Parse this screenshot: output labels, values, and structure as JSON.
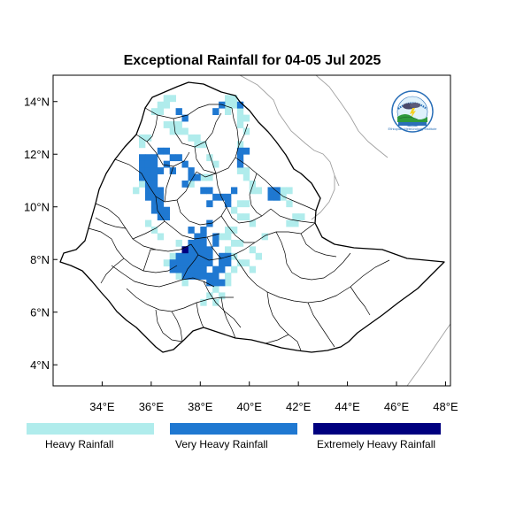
{
  "title": "Exceptional Rainfall for 04-05 Jul 2025",
  "map_extent": {
    "lon": [
      32.0,
      48.2
    ],
    "lat": [
      3.2,
      15.0
    ]
  },
  "x_ticks": [
    {
      "value": 34,
      "label": "34°E"
    },
    {
      "value": 36,
      "label": "36°E"
    },
    {
      "value": 38,
      "label": "38°E"
    },
    {
      "value": 40,
      "label": "40°E"
    },
    {
      "value": 42,
      "label": "42°E"
    },
    {
      "value": 44,
      "label": "44°E"
    },
    {
      "value": 46,
      "label": "46°E"
    },
    {
      "value": 48,
      "label": "48°E"
    }
  ],
  "y_ticks": [
    {
      "value": 4,
      "label": "4°N"
    },
    {
      "value": 6,
      "label": "6°N"
    },
    {
      "value": 8,
      "label": "8°N"
    },
    {
      "value": 10,
      "label": "10°N"
    },
    {
      "value": 12,
      "label": "12°N"
    },
    {
      "value": 14,
      "label": "14°N"
    }
  ],
  "legend": [
    {
      "label": "Heavy Rainfall",
      "color": "#b0ecec"
    },
    {
      "label": "Very Heavy Rainfall",
      "color": "#1f78d1"
    },
    {
      "label": "Extremely Heavy Rainfall",
      "color": "#00007f"
    }
  ],
  "colors": {
    "heavy": "#b0ecec",
    "very_heavy": "#1f78d1",
    "extreme": "#00007f",
    "boundary": "#000000",
    "neighbor_boundary": "#a0a0a0"
  },
  "logo": {
    "name": "ethiopian-meteorology-institute-logo",
    "text": "Ethiopian Meteorology Institute"
  },
  "chart_data": {
    "type": "heatmap",
    "categories": [
      "Heavy Rainfall",
      "Very Heavy Rainfall",
      "Extremely Heavy Rainfall"
    ],
    "cell_size_deg": 0.25,
    "heavy_cells": [
      [
        36.5,
        14.0
      ],
      [
        36.75,
        14.0
      ],
      [
        36.25,
        13.75
      ],
      [
        36.5,
        13.75
      ],
      [
        36.0,
        13.5
      ],
      [
        36.25,
        13.5
      ],
      [
        36.5,
        13.0
      ],
      [
        36.75,
        13.0
      ],
      [
        37.0,
        13.0
      ],
      [
        36.75,
        12.75
      ],
      [
        37.0,
        12.75
      ],
      [
        37.25,
        12.75
      ],
      [
        35.5,
        12.5
      ],
      [
        35.75,
        12.5
      ],
      [
        37.5,
        12.5
      ],
      [
        37.75,
        12.5
      ],
      [
        35.5,
        12.25
      ],
      [
        37.75,
        12.25
      ],
      [
        38.0,
        12.25
      ],
      [
        38.25,
        11.75
      ],
      [
        38.5,
        11.5
      ],
      [
        38.0,
        11.0
      ],
      [
        38.25,
        11.0
      ],
      [
        37.5,
        10.75
      ],
      [
        39.0,
        14.0
      ],
      [
        39.25,
        14.0
      ],
      [
        39.0,
        13.75
      ],
      [
        39.25,
        13.75
      ],
      [
        39.0,
        13.5
      ],
      [
        39.5,
        13.5
      ],
      [
        39.5,
        13.25
      ],
      [
        39.75,
        13.25
      ],
      [
        39.5,
        13.0
      ],
      [
        39.75,
        12.75
      ],
      [
        39.5,
        12.25
      ],
      [
        39.5,
        11.25
      ],
      [
        39.75,
        11.25
      ],
      [
        39.75,
        11.0
      ],
      [
        40.0,
        10.75
      ],
      [
        40.0,
        10.5
      ],
      [
        40.25,
        10.5
      ],
      [
        39.5,
        10.0
      ],
      [
        39.75,
        10.0
      ],
      [
        39.25,
        9.75
      ],
      [
        39.5,
        9.5
      ],
      [
        39.75,
        9.5
      ],
      [
        40.0,
        9.25
      ],
      [
        41.25,
        10.5
      ],
      [
        41.5,
        10.5
      ],
      [
        41.0,
        10.25
      ],
      [
        41.25,
        10.25
      ],
      [
        41.5,
        10.0
      ],
      [
        41.75,
        9.5
      ],
      [
        42.0,
        9.5
      ],
      [
        41.5,
        9.25
      ],
      [
        41.75,
        9.25
      ],
      [
        39.0,
        9.0
      ],
      [
        39.25,
        9.0
      ],
      [
        38.75,
        8.75
      ],
      [
        39.0,
        8.75
      ],
      [
        39.25,
        8.5
      ],
      [
        39.5,
        8.5
      ],
      [
        39.0,
        8.25
      ],
      [
        39.25,
        8.0
      ],
      [
        39.5,
        7.75
      ],
      [
        39.25,
        7.5
      ],
      [
        39.0,
        7.25
      ],
      [
        39.0,
        7.0
      ],
      [
        38.5,
        6.75
      ],
      [
        38.75,
        6.5
      ],
      [
        38.25,
        6.5
      ],
      [
        38.0,
        6.25
      ],
      [
        38.5,
        6.25
      ],
      [
        37.0,
        8.5
      ],
      [
        37.25,
        8.25
      ],
      [
        36.75,
        8.0
      ],
      [
        36.5,
        7.75
      ],
      [
        37.0,
        7.25
      ],
      [
        37.25,
        7.0
      ],
      [
        35.5,
        10.75
      ],
      [
        35.25,
        10.5
      ],
      [
        35.5,
        11.0
      ],
      [
        36.0,
        9.0
      ],
      [
        36.25,
        8.75
      ],
      [
        35.75,
        9.25
      ],
      [
        40.0,
        8.25
      ],
      [
        40.25,
        8.0
      ],
      [
        39.75,
        7.75
      ],
      [
        40.0,
        7.5
      ],
      [
        40.5,
        8.75
      ]
    ],
    "very_heavy_cells": [
      [
        37.0,
        13.5
      ],
      [
        37.25,
        13.25
      ],
      [
        38.5,
        13.5
      ],
      [
        38.75,
        13.75
      ],
      [
        35.5,
        11.75
      ],
      [
        35.75,
        11.75
      ],
      [
        35.5,
        11.5
      ],
      [
        35.75,
        11.5
      ],
      [
        36.0,
        11.5
      ],
      [
        35.5,
        11.25
      ],
      [
        35.75,
        11.25
      ],
      [
        36.0,
        11.25
      ],
      [
        36.25,
        11.25
      ],
      [
        35.5,
        11.0
      ],
      [
        35.75,
        11.0
      ],
      [
        36.0,
        11.0
      ],
      [
        35.75,
        10.75
      ],
      [
        36.0,
        10.75
      ],
      [
        35.75,
        10.5
      ],
      [
        36.0,
        10.5
      ],
      [
        36.25,
        10.5
      ],
      [
        35.75,
        10.25
      ],
      [
        36.0,
        10.25
      ],
      [
        36.25,
        10.25
      ],
      [
        36.0,
        10.0
      ],
      [
        36.25,
        10.0
      ],
      [
        36.0,
        9.75
      ],
      [
        36.25,
        9.75
      ],
      [
        36.5,
        9.75
      ],
      [
        36.25,
        9.5
      ],
      [
        36.5,
        9.5
      ],
      [
        36.25,
        12.0
      ],
      [
        36.5,
        12.0
      ],
      [
        36.0,
        11.75
      ],
      [
        36.75,
        11.75
      ],
      [
        36.5,
        11.5
      ],
      [
        36.75,
        11.25
      ],
      [
        37.0,
        11.75
      ],
      [
        37.25,
        11.5
      ],
      [
        37.5,
        11.25
      ],
      [
        37.5,
        11.0
      ],
      [
        37.75,
        11.0
      ],
      [
        37.25,
        10.75
      ],
      [
        38.0,
        10.5
      ],
      [
        38.25,
        10.5
      ],
      [
        38.5,
        10.25
      ],
      [
        38.25,
        10.0
      ],
      [
        38.75,
        10.25
      ],
      [
        39.0,
        10.0
      ],
      [
        39.0,
        10.25
      ],
      [
        39.25,
        10.5
      ],
      [
        39.5,
        11.5
      ],
      [
        39.5,
        11.75
      ],
      [
        39.75,
        12.0
      ],
      [
        39.5,
        12.0
      ],
      [
        39.5,
        13.75
      ],
      [
        40.75,
        10.25
      ],
      [
        41.0,
        10.25
      ],
      [
        41.0,
        10.5
      ],
      [
        40.75,
        10.5
      ],
      [
        37.5,
        9.0
      ],
      [
        37.75,
        8.75
      ],
      [
        38.0,
        8.75
      ],
      [
        37.5,
        8.5
      ],
      [
        37.75,
        8.5
      ],
      [
        38.0,
        8.5
      ],
      [
        37.25,
        8.25
      ],
      [
        37.5,
        8.25
      ],
      [
        37.75,
        8.25
      ],
      [
        38.0,
        8.25
      ],
      [
        38.25,
        8.25
      ],
      [
        37.0,
        8.0
      ],
      [
        37.25,
        8.0
      ],
      [
        37.5,
        8.0
      ],
      [
        37.75,
        8.0
      ],
      [
        38.0,
        8.0
      ],
      [
        38.25,
        8.0
      ],
      [
        36.75,
        7.75
      ],
      [
        37.0,
        7.75
      ],
      [
        37.25,
        7.75
      ],
      [
        37.5,
        7.75
      ],
      [
        37.75,
        7.75
      ],
      [
        38.0,
        7.75
      ],
      [
        38.25,
        7.75
      ],
      [
        36.75,
        7.5
      ],
      [
        37.0,
        7.5
      ],
      [
        37.25,
        7.5
      ],
      [
        37.5,
        7.5
      ],
      [
        37.75,
        7.5
      ],
      [
        38.0,
        7.5
      ],
      [
        37.25,
        7.25
      ],
      [
        37.5,
        7.25
      ],
      [
        37.75,
        7.25
      ],
      [
        38.0,
        7.25
      ],
      [
        38.25,
        7.25
      ],
      [
        38.5,
        7.25
      ],
      [
        38.25,
        7.0
      ],
      [
        38.5,
        7.0
      ],
      [
        38.75,
        7.0
      ],
      [
        38.5,
        7.5
      ],
      [
        38.75,
        7.5
      ],
      [
        38.0,
        9.0
      ],
      [
        38.25,
        9.25
      ],
      [
        38.5,
        8.5
      ],
      [
        38.5,
        8.75
      ],
      [
        39.0,
        7.75
      ],
      [
        38.75,
        8.0
      ],
      [
        38.75,
        7.75
      ],
      [
        39.0,
        8.0
      ]
    ],
    "extreme_cells": [
      [
        37.25,
        8.25
      ]
    ]
  }
}
